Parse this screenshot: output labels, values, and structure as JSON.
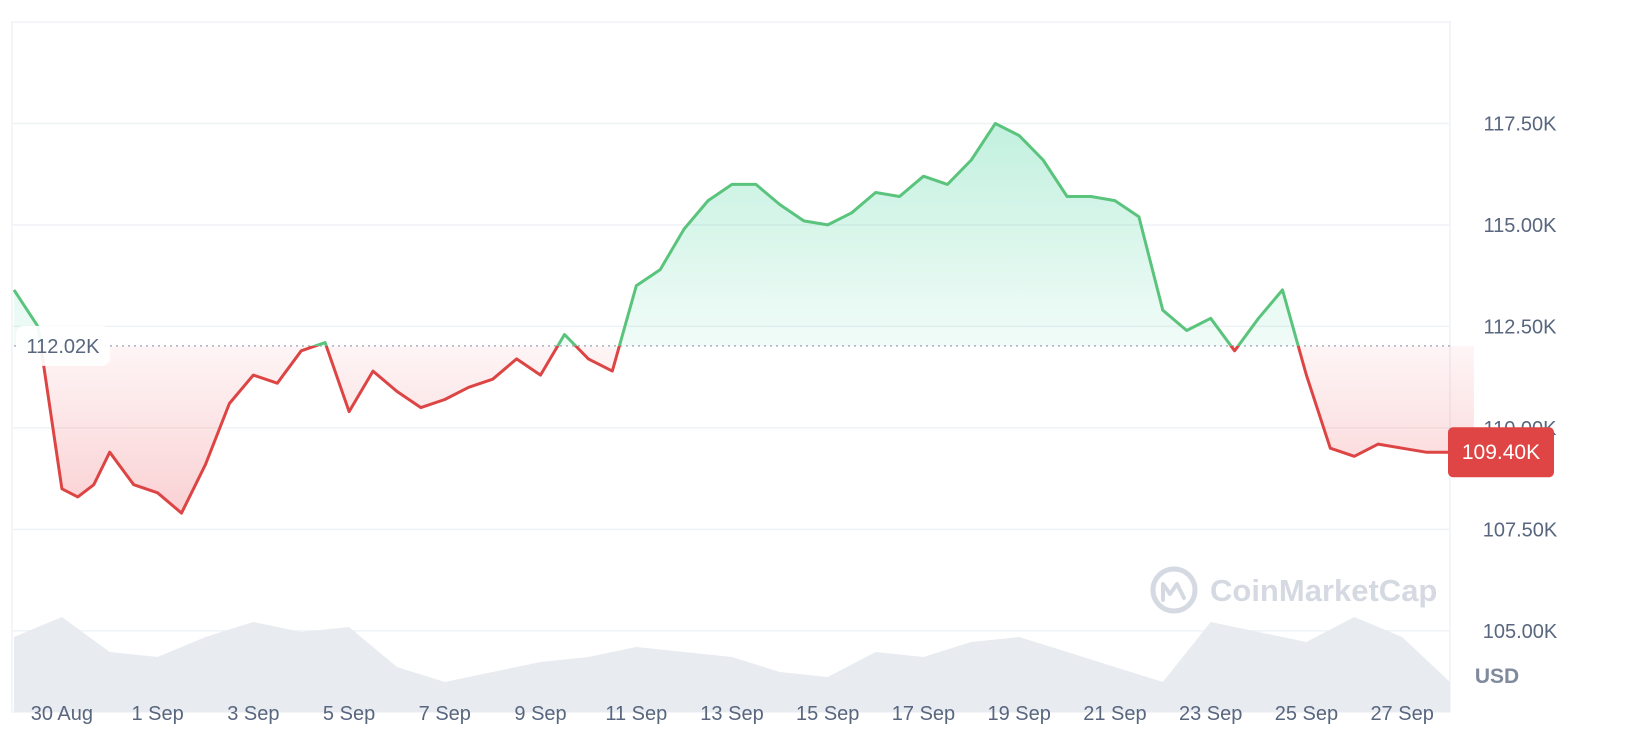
{
  "colors": {
    "up": "#16c784",
    "up_line": "#5ac47d",
    "down": "#ea3943",
    "down_line": "#dd4545",
    "grid": "#eff2f5",
    "volume": "#e8ebf0",
    "badge": "#df4545",
    "axis_text": "#58667e"
  },
  "chart_data": {
    "type": "area",
    "x_axis_type": "date",
    "x_start": "2025-08-29",
    "x_end": "2025-09-28",
    "x_tick_labels": [
      "30 Aug",
      "1 Sep",
      "3 Sep",
      "5 Sep",
      "7 Sep",
      "9 Sep",
      "11 Sep",
      "13 Sep",
      "15 Sep",
      "17 Sep",
      "19 Sep",
      "21 Sep",
      "23 Sep",
      "25 Sep",
      "27 Sep"
    ],
    "y_tick_labels": [
      "117.50K",
      "115.00K",
      "112.50K",
      "110.00K",
      "107.50K",
      "105.00K"
    ],
    "ylim": [
      103000,
      120000
    ],
    "y_unit": "USD",
    "baseline_label": "112.02K",
    "baseline_value": 112020,
    "current_label": "109.40K",
    "current_value": 109400,
    "grid": true,
    "watermark": "CoinMarketCap",
    "price_series": {
      "x": [
        "2025-08-29 00:00",
        "2025-08-29 12:00",
        "2025-08-30 00:00",
        "2025-08-30 08:00",
        "2025-08-30 16:00",
        "2025-08-31 00:00",
        "2025-08-31 12:00",
        "2025-09-01 00:00",
        "2025-09-01 12:00",
        "2025-09-02 00:00",
        "2025-09-02 12:00",
        "2025-09-03 00:00",
        "2025-09-03 12:00",
        "2025-09-04 00:00",
        "2025-09-04 12:00",
        "2025-09-05 00:00",
        "2025-09-05 12:00",
        "2025-09-06 00:00",
        "2025-09-06 12:00",
        "2025-09-07 00:00",
        "2025-09-07 12:00",
        "2025-09-08 00:00",
        "2025-09-08 12:00",
        "2025-09-09 00:00",
        "2025-09-09 12:00",
        "2025-09-10 00:00",
        "2025-09-10 12:00",
        "2025-09-11 00:00",
        "2025-09-11 12:00",
        "2025-09-12 00:00",
        "2025-09-12 12:00",
        "2025-09-13 00:00",
        "2025-09-13 12:00",
        "2025-09-14 00:00",
        "2025-09-14 12:00",
        "2025-09-15 00:00",
        "2025-09-15 12:00",
        "2025-09-16 00:00",
        "2025-09-16 12:00",
        "2025-09-17 00:00",
        "2025-09-17 12:00",
        "2025-09-18 00:00",
        "2025-09-18 12:00",
        "2025-09-19 00:00",
        "2025-09-19 12:00",
        "2025-09-20 00:00",
        "2025-09-20 12:00",
        "2025-09-21 00:00",
        "2025-09-21 12:00",
        "2025-09-22 00:00",
        "2025-09-22 12:00",
        "2025-09-23 00:00",
        "2025-09-23 12:00",
        "2025-09-24 00:00",
        "2025-09-24 12:00",
        "2025-09-25 00:00",
        "2025-09-25 12:00",
        "2025-09-26 00:00",
        "2025-09-26 12:00",
        "2025-09-27 00:00",
        "2025-09-27 12:00",
        "2025-09-28 00:00",
        "2025-09-28 12:00"
      ],
      "y": [
        113400,
        112500,
        108500,
        108300,
        108600,
        109400,
        108600,
        108400,
        107900,
        109100,
        110600,
        111300,
        111100,
        111900,
        112100,
        110400,
        111400,
        110900,
        110500,
        110700,
        111000,
        111200,
        111700,
        111300,
        112300,
        111700,
        111400,
        113500,
        113900,
        114900,
        115600,
        116000,
        116000,
        115500,
        115100,
        115000,
        115300,
        115800,
        115700,
        116200,
        116000,
        116600,
        117500,
        117200,
        116600,
        115700,
        115700,
        115600,
        115200,
        112900,
        112400,
        112700,
        111900,
        112700,
        113400,
        111300,
        109500,
        109300,
        109600,
        109500,
        109400,
        109400,
        109400
      ]
    },
    "volume_series": {
      "note_level": "relative",
      "x": [
        "2025-08-29",
        "2025-08-30",
        "2025-08-31",
        "2025-09-01",
        "2025-09-02",
        "2025-09-03",
        "2025-09-04",
        "2025-09-05",
        "2025-09-06",
        "2025-09-07",
        "2025-09-08",
        "2025-09-09",
        "2025-09-10",
        "2025-09-11",
        "2025-09-12",
        "2025-09-13",
        "2025-09-14",
        "2025-09-15",
        "2025-09-16",
        "2025-09-17",
        "2025-09-18",
        "2025-09-19",
        "2025-09-20",
        "2025-09-21",
        "2025-09-22",
        "2025-09-23",
        "2025-09-24",
        "2025-09-25",
        "2025-09-26",
        "2025-09-27",
        "2025-09-28"
      ],
      "y": [
        0.75,
        0.95,
        0.6,
        0.55,
        0.75,
        0.9,
        0.8,
        0.85,
        0.45,
        0.3,
        0.4,
        0.5,
        0.55,
        0.65,
        0.6,
        0.55,
        0.4,
        0.35,
        0.6,
        0.55,
        0.7,
        0.75,
        0.6,
        0.45,
        0.3,
        0.9,
        0.8,
        0.7,
        0.95,
        0.75,
        0.3
      ]
    }
  }
}
